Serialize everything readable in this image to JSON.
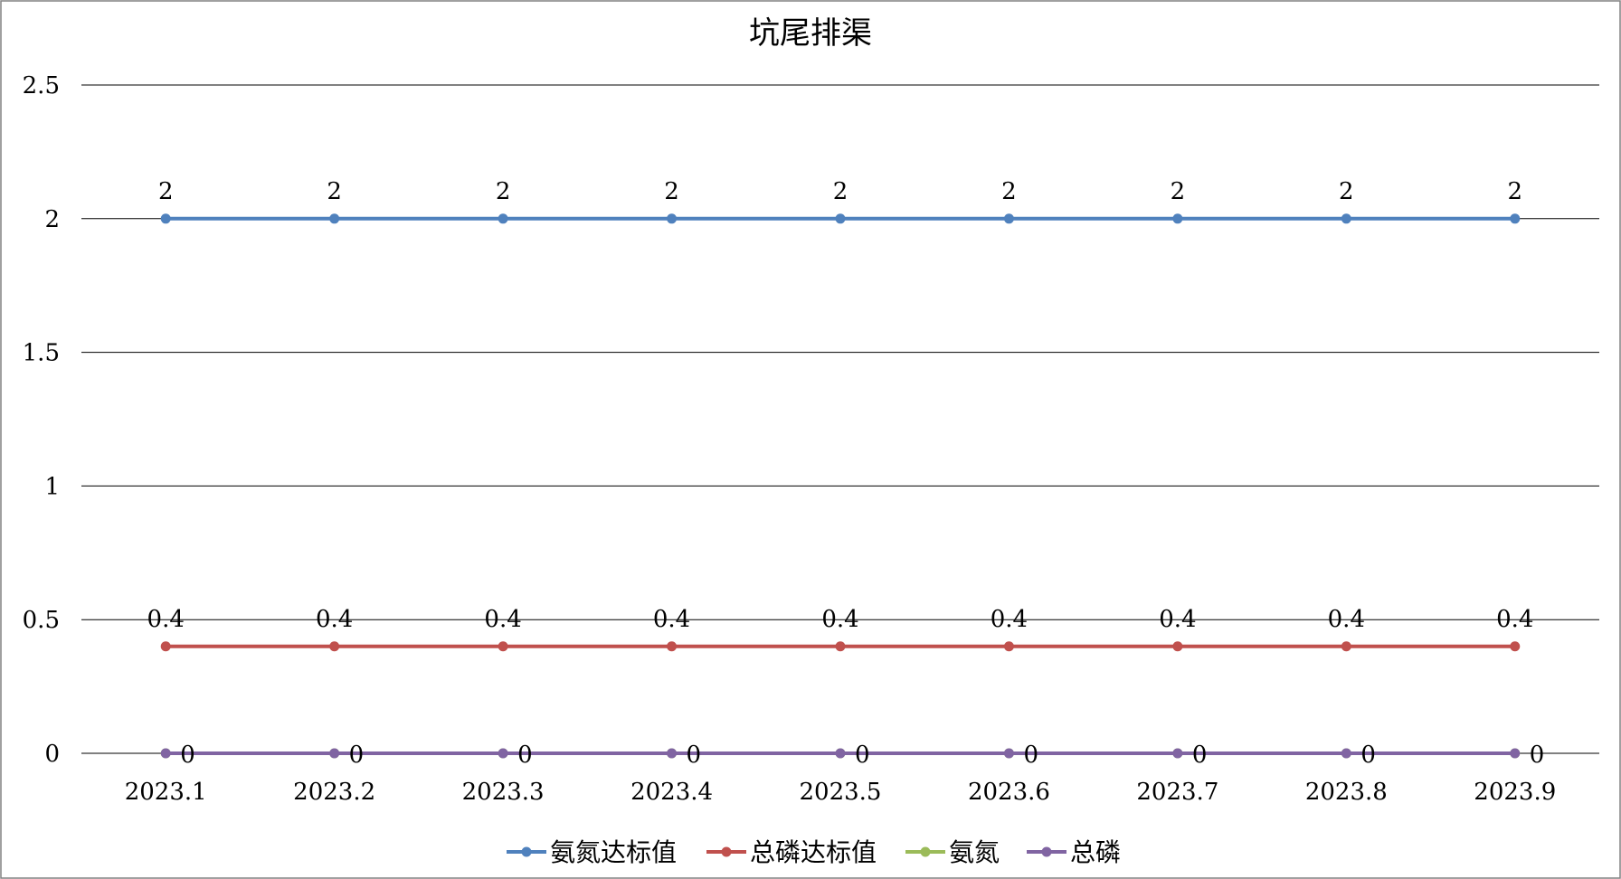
{
  "chart_data": {
    "type": "line",
    "title": "坑尾排渠",
    "xlabel": "",
    "ylabel": "",
    "categories": [
      "2023.1",
      "2023.2",
      "2023.3",
      "2023.4",
      "2023.5",
      "2023.6",
      "2023.7",
      "2023.8",
      "2023.9"
    ],
    "ylim": [
      0,
      2.5
    ],
    "yticks": [
      "0",
      "0.5",
      "1",
      "1.5",
      "2",
      "2.5"
    ],
    "grid": true,
    "legend_position": "bottom",
    "series": [
      {
        "name": "氨氮达标值",
        "color": "#4F81BD",
        "values": [
          2,
          2,
          2,
          2,
          2,
          2,
          2,
          2,
          2
        ],
        "labels": [
          "2",
          "2",
          "2",
          "2",
          "2",
          "2",
          "2",
          "2",
          "2"
        ]
      },
      {
        "name": "总磷达标值",
        "color": "#C0504D",
        "values": [
          0.4,
          0.4,
          0.4,
          0.4,
          0.4,
          0.4,
          0.4,
          0.4,
          0.4
        ],
        "labels": [
          "0.4",
          "0.4",
          "0.4",
          "0.4",
          "0.4",
          "0.4",
          "0.4",
          "0.4",
          "0.4"
        ]
      },
      {
        "name": "氨氮",
        "color": "#9BBB59",
        "values": [
          0,
          0,
          0,
          0,
          0,
          0,
          0,
          0,
          0
        ],
        "labels": []
      },
      {
        "name": "总磷",
        "color": "#8064A2",
        "values": [
          0,
          0,
          0,
          0,
          0,
          0,
          0,
          0,
          0
        ],
        "labels": [
          "0",
          "0",
          "0",
          "0",
          "0",
          "0",
          "0",
          "0",
          "0"
        ]
      }
    ]
  }
}
